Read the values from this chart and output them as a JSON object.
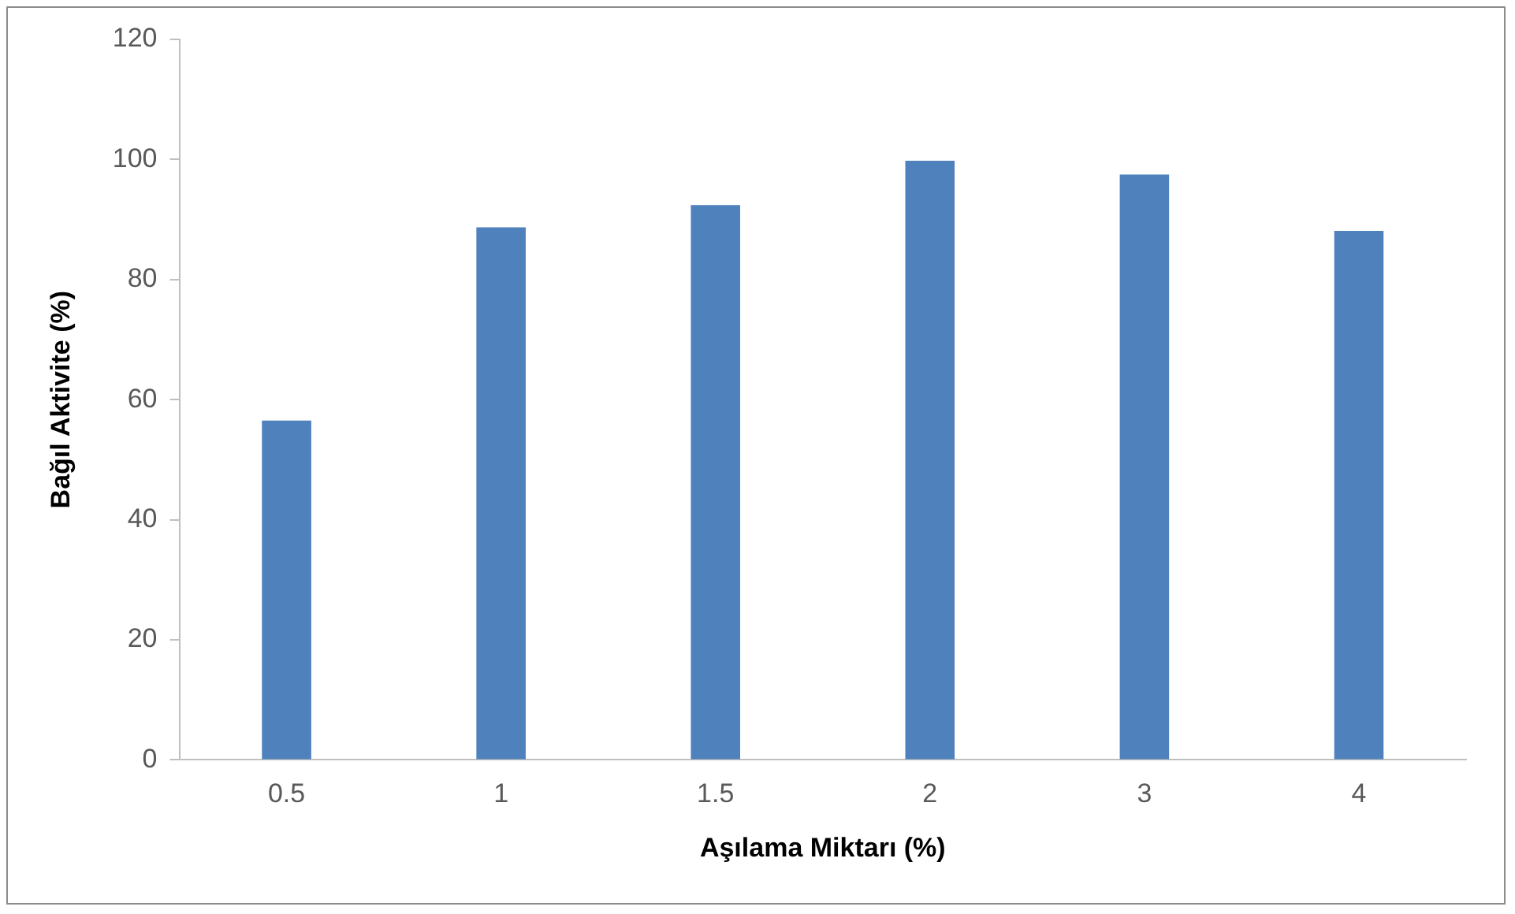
{
  "chart_data": {
    "type": "bar",
    "xlabel": "Aşılama Miktarı (%)",
    "ylabel": "Bağıl Aktivite (%)",
    "categories": [
      "0.5",
      "1",
      "1.5",
      "2",
      "3",
      "4"
    ],
    "values": [
      56.5,
      88.7,
      92.4,
      99.8,
      97.5,
      88.1
    ],
    "color": "#4f81bd",
    "ylim": [
      0,
      120
    ],
    "yticks": [
      0,
      20,
      40,
      60,
      80,
      100,
      120
    ],
    "grid": false,
    "legend": false
  }
}
